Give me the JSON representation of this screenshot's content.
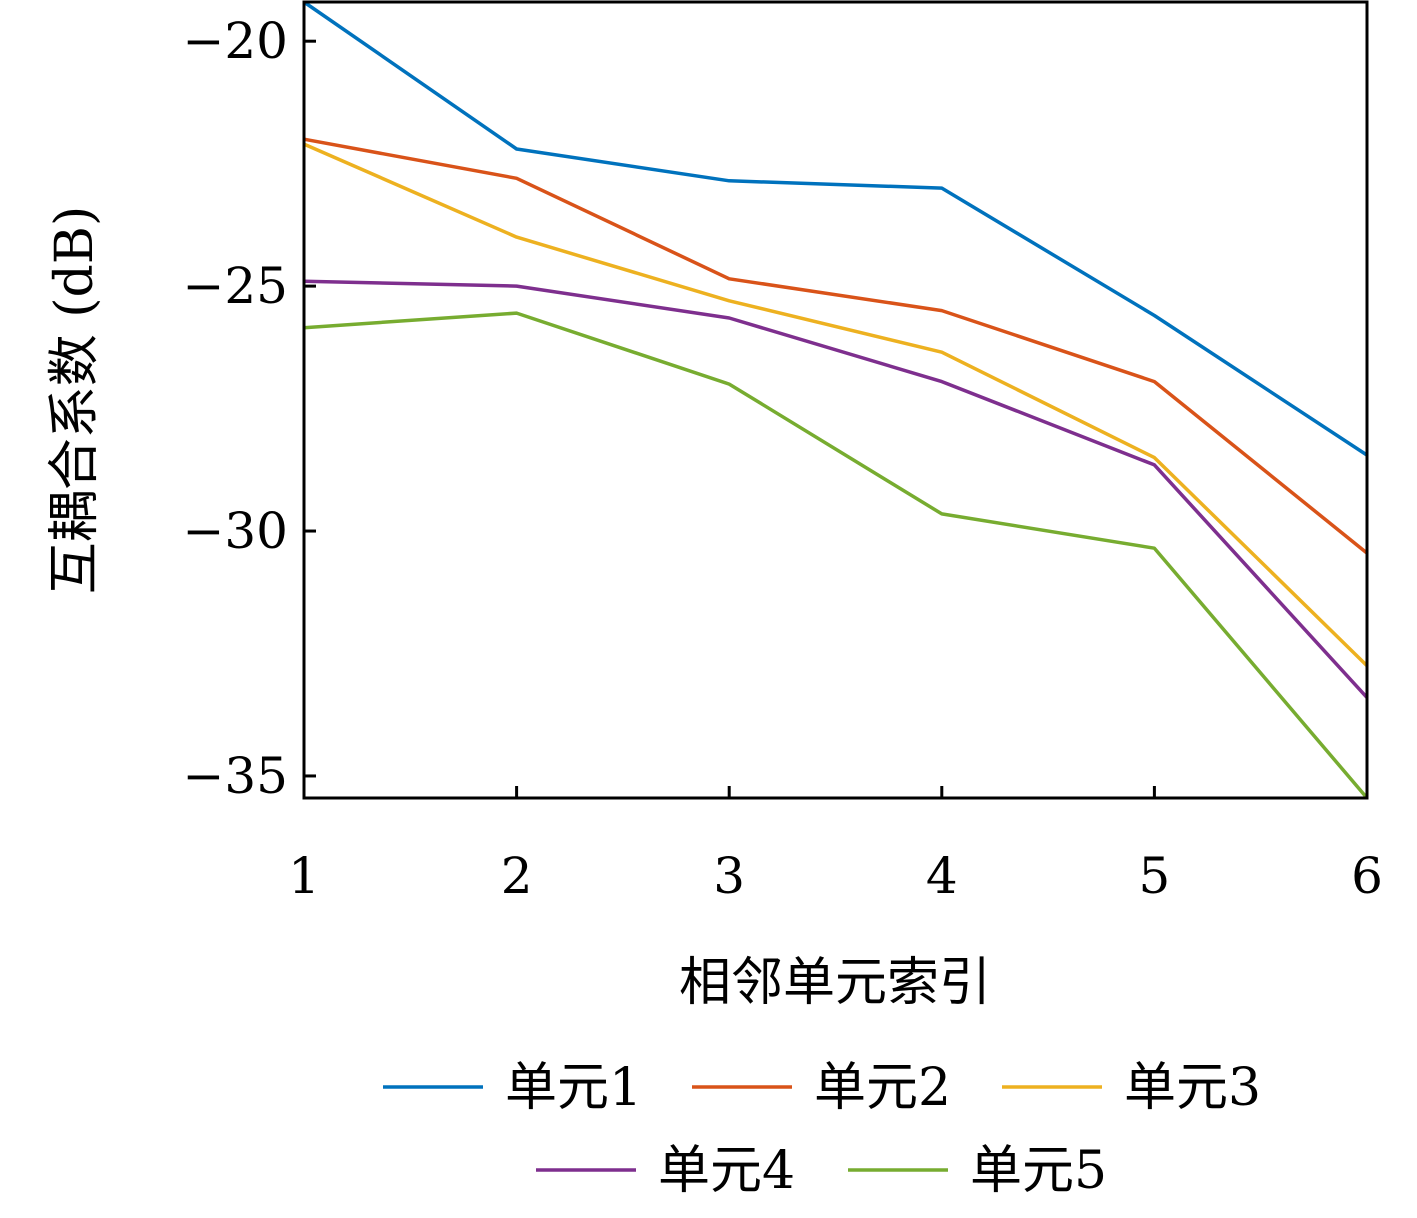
{
  "chart_data": {
    "type": "line",
    "title": "",
    "xlabel": "相邻单元索引",
    "ylabel": "互耦合系数 (dB)",
    "x": [
      1,
      2,
      3,
      4,
      5,
      6
    ],
    "xlim": [
      1,
      6
    ],
    "ylim": [
      -35.45,
      -19.2
    ],
    "xticks": [
      1,
      2,
      3,
      4,
      5,
      6
    ],
    "yticks": [
      -20,
      -25,
      -30,
      -35
    ],
    "ytick_labels": [
      "−20",
      "−25",
      "−30",
      "−35"
    ],
    "grid": false,
    "legend_position": "bottom",
    "series": [
      {
        "name": "单元1",
        "color": "#0072BD",
        "values": [
          -19.2,
          -22.2,
          -22.85,
          -23.0,
          -25.6,
          -28.45
        ]
      },
      {
        "name": "单元2",
        "color": "#D95319",
        "values": [
          -22.0,
          -22.8,
          -24.85,
          -25.5,
          -26.95,
          -30.45
        ]
      },
      {
        "name": "单元3",
        "color": "#EDB120",
        "values": [
          -22.1,
          -24.0,
          -25.3,
          -26.35,
          -28.5,
          -32.75
        ]
      },
      {
        "name": "单元4",
        "color": "#7E2F8E",
        "values": [
          -24.9,
          -25.0,
          -25.65,
          -26.95,
          -28.65,
          -33.4
        ]
      },
      {
        "name": "单元5",
        "color": "#77AC30",
        "values": [
          -25.85,
          -25.55,
          -27.0,
          -29.65,
          -30.35,
          -35.45
        ]
      }
    ]
  }
}
